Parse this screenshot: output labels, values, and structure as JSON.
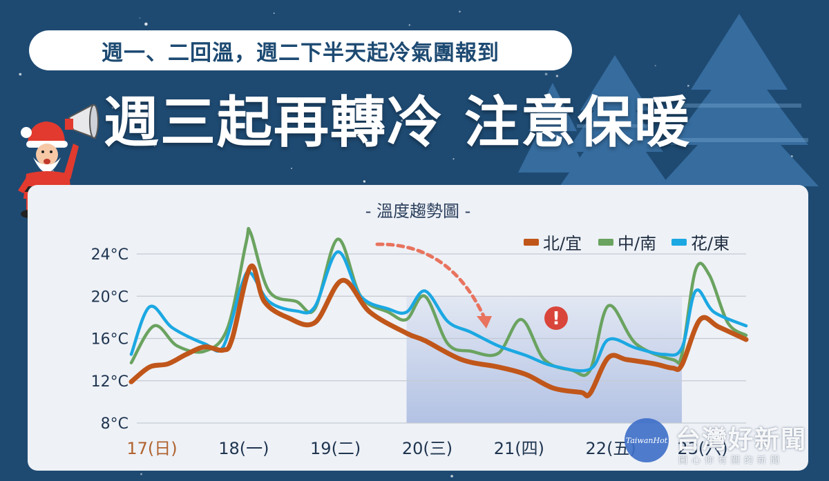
{
  "header": {
    "subtitle": "週一、二回溫，週二下半天起冷氣團報到",
    "headline": "週三起再轉冷 注意保暖"
  },
  "colors": {
    "background": "#1e4a72",
    "north": "#c0561a",
    "central_south": "#6aa360",
    "east": "#1ba8e2",
    "highlight": "#9fb2de",
    "arrow": "#e8735e",
    "alert": "#d9453a"
  },
  "icons": [
    "santa-megaphone-icon",
    "christmas-tree-icon",
    "snowflake-icon",
    "alert-icon",
    "dashed-arrow-icon"
  ],
  "chart_data": {
    "type": "line",
    "title": "- 溫度趨勢圖 -",
    "y_ticks": [
      "24°C",
      "20°C",
      "16°C",
      "12°C",
      "8°C"
    ],
    "y_tick_values": [
      24,
      20,
      16,
      12,
      8
    ],
    "ylim": [
      8,
      24
    ],
    "xlim": [
      0,
      6.7
    ],
    "categories": [
      "17(日)",
      "18(一)",
      "19(二)",
      "20(三)",
      "21(四)",
      "22(五)",
      "23(六)"
    ],
    "category_colors": [
      "#b0622e",
      "#1f3550",
      "#1f3550",
      "#1f3550",
      "#1f3550",
      "#1f3550",
      "#1f3550"
    ],
    "highlight_range": [
      3.0,
      6.0
    ],
    "alert_symbol": "!",
    "legend_position": "top-right",
    "series": [
      {
        "name": "北/宜",
        "color": "#c0561a",
        "x": [
          0,
          0.2,
          0.4,
          0.6,
          0.8,
          1.0,
          1.1,
          1.3,
          1.45,
          1.7,
          2.0,
          2.3,
          2.6,
          3.0,
          3.2,
          3.6,
          4.0,
          4.3,
          4.6,
          4.9,
          5.0,
          5.2,
          5.4,
          5.7,
          5.9,
          6.0,
          6.2,
          6.4,
          6.7
        ],
        "values": [
          11.9,
          13.3,
          13.6,
          14.5,
          15.2,
          14.9,
          16.0,
          22.8,
          19.5,
          18.0,
          17.5,
          21.5,
          18.5,
          16.5,
          15.8,
          14.0,
          13.3,
          12.6,
          11.3,
          10.9,
          10.8,
          14.2,
          14.0,
          13.6,
          13.2,
          13.5,
          17.8,
          17.1,
          15.9
        ]
      },
      {
        "name": "中/南",
        "color": "#6aa360",
        "x": [
          0,
          0.25,
          0.5,
          0.8,
          1.05,
          1.25,
          1.3,
          1.5,
          1.8,
          2.0,
          2.25,
          2.5,
          2.8,
          3.0,
          3.2,
          3.45,
          3.7,
          4.0,
          4.25,
          4.5,
          4.8,
          5.0,
          5.2,
          5.5,
          5.9,
          6.0,
          6.15,
          6.3,
          6.5,
          6.7
        ],
        "values": [
          13.7,
          17.2,
          15.3,
          14.8,
          17.0,
          25.0,
          26.0,
          20.5,
          19.5,
          18.8,
          25.4,
          20.0,
          18.5,
          17.8,
          20.0,
          15.5,
          14.8,
          14.6,
          17.8,
          14.0,
          13.0,
          13.0,
          19.1,
          15.5,
          14.0,
          14.5,
          22.5,
          22.0,
          17.5,
          16.3
        ]
      },
      {
        "name": "花/東",
        "color": "#1ba8e2",
        "x": [
          0,
          0.2,
          0.45,
          0.8,
          1.0,
          1.2,
          1.3,
          1.5,
          1.8,
          2.0,
          2.25,
          2.5,
          2.8,
          3.0,
          3.2,
          3.45,
          3.7,
          4.0,
          4.3,
          4.6,
          5.0,
          5.2,
          5.5,
          5.8,
          6.0,
          6.15,
          6.35,
          6.7
        ],
        "values": [
          14.5,
          19.0,
          17.0,
          15.5,
          15.2,
          21.0,
          22.2,
          19.5,
          18.6,
          19.0,
          24.2,
          20.0,
          18.8,
          18.5,
          20.5,
          17.6,
          16.6,
          15.3,
          14.4,
          13.4,
          13.1,
          15.9,
          15.1,
          14.5,
          15.1,
          20.5,
          18.5,
          17.2
        ]
      }
    ]
  },
  "watermark": {
    "logo_text": "TaiwanHot",
    "name": "台灣好新聞",
    "slogan": "闖心你有關的新聞"
  }
}
